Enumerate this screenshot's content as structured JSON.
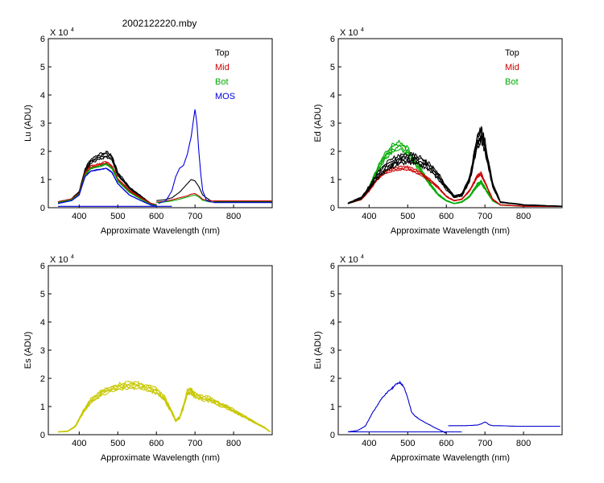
{
  "title": "2002122220.mby",
  "colors": {
    "top": "#000000",
    "mid": "#cc0000",
    "bot": "#00aa00",
    "mos": "#0000dd",
    "es": "#c8c800",
    "eu": "#0000cc"
  },
  "chart_data": [
    {
      "id": "lu",
      "type": "line",
      "ylabel": "Lu (ADU)",
      "xlabel": "Approximate Wavelength (nm)",
      "xlim": [
        320,
        900
      ],
      "ylim": [
        0,
        6
      ],
      "xticks": [
        400,
        500,
        600,
        700,
        800
      ],
      "yticks": [
        0,
        1,
        2,
        3,
        4,
        5,
        6
      ],
      "multiplier": "X 10",
      "multiplier_exp": "4",
      "legend": [
        "Top",
        "Mid",
        "Bot",
        "MOS"
      ],
      "series": [
        {
          "name": "Top",
          "color": "top",
          "x": [
            345,
            380,
            400,
            415,
            430,
            450,
            470,
            485,
            500,
            530,
            560,
            585,
            600
          ],
          "y": [
            0.2,
            0.3,
            0.55,
            1.3,
            1.65,
            1.8,
            1.9,
            1.75,
            1.2,
            0.7,
            0.4,
            0.15,
            0.1
          ],
          "spread": 0.1,
          "copies": 4
        },
        {
          "name": "Mid",
          "color": "mid",
          "x": [
            345,
            380,
            400,
            415,
            430,
            450,
            470,
            485,
            500,
            530,
            560,
            585,
            600
          ],
          "y": [
            0.2,
            0.3,
            0.5,
            1.2,
            1.45,
            1.5,
            1.6,
            1.45,
            1.0,
            0.6,
            0.35,
            0.15,
            0.1
          ],
          "spread": 0.06,
          "copies": 3
        },
        {
          "name": "Bot",
          "color": "bot",
          "x": [
            345,
            380,
            400,
            415,
            430,
            450,
            470,
            485,
            500,
            530,
            560,
            585,
            600
          ],
          "y": [
            0.18,
            0.28,
            0.48,
            1.15,
            1.4,
            1.45,
            1.55,
            1.4,
            0.95,
            0.55,
            0.3,
            0.12,
            0.08
          ],
          "spread": 0.04,
          "copies": 2
        },
        {
          "name": "MOS",
          "color": "mos",
          "x": [
            345,
            380,
            400,
            415,
            430,
            450,
            470,
            485,
            500,
            530,
            560,
            585,
            600
          ],
          "y": [
            0.15,
            0.25,
            0.45,
            1.1,
            1.3,
            1.35,
            1.4,
            1.25,
            0.85,
            0.45,
            0.25,
            0.1,
            0.05
          ],
          "spread": 0.03,
          "copies": 2
        },
        {
          "name": "Top-red",
          "color": "top",
          "x": [
            600,
            620,
            640,
            660,
            680,
            690,
            700,
            710,
            720,
            740,
            760,
            800,
            900
          ],
          "y": [
            0.25,
            0.28,
            0.35,
            0.55,
            0.85,
            1.0,
            0.95,
            0.75,
            0.45,
            0.25,
            0.22,
            0.22,
            0.22
          ],
          "spread": 0.02,
          "copies": 1
        },
        {
          "name": "Mid-red",
          "color": "mid",
          "x": [
            600,
            620,
            640,
            660,
            680,
            690,
            700,
            710,
            720,
            740,
            760,
            800,
            900
          ],
          "y": [
            0.2,
            0.22,
            0.28,
            0.35,
            0.42,
            0.48,
            0.5,
            0.42,
            0.3,
            0.24,
            0.24,
            0.24,
            0.24
          ],
          "spread": 0.02,
          "copies": 1
        },
        {
          "name": "Bot-red",
          "color": "bot",
          "x": [
            600,
            620,
            640,
            660,
            680,
            690,
            700,
            710,
            720,
            740,
            760,
            800,
            900
          ],
          "y": [
            0.18,
            0.2,
            0.24,
            0.3,
            0.38,
            0.42,
            0.45,
            0.38,
            0.26,
            0.2,
            0.2,
            0.2,
            0.2
          ],
          "spread": 0.02,
          "copies": 1
        },
        {
          "name": "MOS-red",
          "color": "mos",
          "x": [
            605,
            625,
            640,
            650,
            660,
            670,
            680,
            690,
            695,
            700,
            705,
            710,
            715,
            720,
            730,
            750,
            800,
            900
          ],
          "y": [
            0.15,
            0.25,
            0.6,
            1.1,
            1.4,
            1.5,
            1.9,
            2.5,
            3.0,
            3.5,
            3.0,
            2.0,
            1.2,
            0.6,
            0.25,
            0.18,
            0.18,
            0.18
          ],
          "spread": 0.02,
          "copies": 1
        },
        {
          "name": "Baseline",
          "color": "mos",
          "x": [
            345,
            640
          ],
          "y": [
            0.05,
            0.05
          ],
          "spread": 0,
          "copies": 1
        }
      ]
    },
    {
      "id": "ed",
      "type": "line",
      "ylabel": "Ed  (ADU)",
      "xlabel": "Approximate Wavelength (nm)",
      "xlim": [
        320,
        900
      ],
      "ylim": [
        0,
        6
      ],
      "xticks": [
        400,
        500,
        600,
        700,
        800
      ],
      "yticks": [
        0,
        1,
        2,
        3,
        4,
        5,
        6
      ],
      "multiplier": "X 10",
      "multiplier_exp": "4",
      "legend": [
        "Top",
        "Mid",
        "Bot"
      ],
      "series": [
        {
          "name": "Bot",
          "color": "bot",
          "x": [
            345,
            380,
            400,
            420,
            440,
            460,
            480,
            500,
            520,
            540,
            560,
            580,
            600,
            620,
            640,
            660,
            680,
            690,
            700,
            720,
            740,
            800,
            900
          ],
          "y": [
            0.15,
            0.3,
            0.7,
            1.3,
            1.8,
            2.1,
            2.2,
            2.0,
            1.6,
            1.2,
            0.8,
            0.45,
            0.25,
            0.15,
            0.2,
            0.4,
            0.8,
            0.9,
            0.7,
            0.25,
            0.1,
            0.05,
            0.05
          ],
          "spread": 0.12,
          "copies": 4
        },
        {
          "name": "Mid",
          "color": "mid",
          "x": [
            345,
            380,
            400,
            420,
            440,
            460,
            480,
            500,
            520,
            540,
            560,
            580,
            600,
            620,
            640,
            660,
            680,
            690,
            700,
            720,
            740,
            800,
            900
          ],
          "y": [
            0.15,
            0.3,
            0.6,
            1.0,
            1.25,
            1.35,
            1.4,
            1.4,
            1.3,
            1.15,
            0.95,
            0.7,
            0.4,
            0.25,
            0.3,
            0.6,
            1.1,
            1.2,
            0.9,
            0.3,
            0.1,
            0.05,
            0.05
          ],
          "spread": 0.08,
          "copies": 3
        },
        {
          "name": "Top",
          "color": "top",
          "x": [
            345,
            380,
            400,
            420,
            440,
            460,
            480,
            500,
            520,
            540,
            560,
            580,
            600,
            620,
            640,
            660,
            680,
            690,
            700,
            720,
            740,
            800,
            900
          ],
          "y": [
            0.15,
            0.35,
            0.7,
            1.1,
            1.4,
            1.6,
            1.7,
            1.75,
            1.7,
            1.6,
            1.4,
            1.1,
            0.7,
            0.4,
            0.45,
            1.0,
            2.3,
            2.6,
            2.2,
            0.8,
            0.2,
            0.1,
            0.05
          ],
          "spread": 0.18,
          "copies": 5
        }
      ]
    },
    {
      "id": "es",
      "type": "line",
      "ylabel": "Es  (ADU)",
      "xlabel": "Approximate Wavelength (nm)",
      "xlim": [
        320,
        900
      ],
      "ylim": [
        0,
        6
      ],
      "xticks": [
        400,
        500,
        600,
        700,
        800
      ],
      "yticks": [
        0,
        1,
        2,
        3,
        4,
        5,
        6
      ],
      "multiplier": "X 10",
      "multiplier_exp": "4",
      "legend": [],
      "series": [
        {
          "name": "Es",
          "color": "es",
          "x": [
            345,
            370,
            390,
            410,
            430,
            460,
            490,
            520,
            550,
            580,
            600,
            620,
            640,
            650,
            660,
            670,
            680,
            690,
            700,
            720,
            740,
            760,
            780,
            800,
            820,
            840,
            860,
            880,
            895
          ],
          "y": [
            0.1,
            0.12,
            0.3,
            0.8,
            1.2,
            1.5,
            1.65,
            1.75,
            1.75,
            1.65,
            1.55,
            1.3,
            0.8,
            0.5,
            0.6,
            1.0,
            1.5,
            1.55,
            1.4,
            1.3,
            1.25,
            1.1,
            1.0,
            0.85,
            0.7,
            0.55,
            0.4,
            0.25,
            0.1
          ],
          "spread": 0.12,
          "copies": 5
        }
      ]
    },
    {
      "id": "eu",
      "type": "line",
      "ylabel": "Eu  (ADU)",
      "xlabel": "Approximate Wavelength (nm)",
      "xlim": [
        320,
        900
      ],
      "ylim": [
        0,
        6
      ],
      "xticks": [
        400,
        500,
        600,
        700,
        800
      ],
      "yticks": [
        0,
        1,
        2,
        3,
        4,
        5,
        6
      ],
      "multiplier": "X 10",
      "multiplier_exp": "4",
      "legend": [],
      "series": [
        {
          "name": "Eu",
          "color": "eu",
          "x": [
            345,
            370,
            390,
            400,
            410,
            420,
            430,
            440,
            450,
            460,
            470,
            480,
            490,
            500,
            510,
            520,
            530,
            550,
            570,
            590,
            600
          ],
          "y": [
            0.1,
            0.15,
            0.3,
            0.55,
            0.8,
            1.0,
            1.25,
            1.4,
            1.55,
            1.65,
            1.8,
            1.85,
            1.7,
            1.3,
            0.8,
            0.65,
            0.55,
            0.4,
            0.25,
            0.12,
            0.05
          ],
          "spread": 0.06,
          "copies": 1
        },
        {
          "name": "Eu-base",
          "color": "eu",
          "x": [
            345,
            640
          ],
          "y": [
            0.1,
            0.1
          ],
          "spread": 0,
          "copies": 1
        },
        {
          "name": "Eu-red",
          "color": "eu",
          "x": [
            605,
            650,
            680,
            690,
            700,
            705,
            710,
            720,
            740,
            780,
            820,
            860,
            895
          ],
          "y": [
            0.32,
            0.32,
            0.34,
            0.38,
            0.45,
            0.42,
            0.36,
            0.32,
            0.32,
            0.3,
            0.3,
            0.3,
            0.3
          ],
          "spread": 0.02,
          "copies": 1
        }
      ]
    }
  ]
}
